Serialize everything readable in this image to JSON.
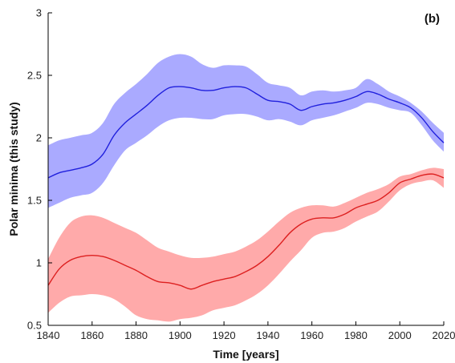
{
  "chart_data": {
    "type": "line",
    "panel_label": "(b)",
    "xlabel": "Time [years]",
    "ylabel": "Polar minima (this study)",
    "xlim": [
      1840,
      2020
    ],
    "ylim": [
      0.5,
      3
    ],
    "xticks": [
      1840,
      1860,
      1880,
      1900,
      1920,
      1940,
      1960,
      1980,
      2000,
      2020
    ],
    "yticks": [
      0.5,
      1,
      1.5,
      2,
      2.5,
      3
    ],
    "ytick_labels": [
      "0.5",
      "1",
      "1.5",
      "2",
      "2.5",
      "3"
    ],
    "grid": false,
    "series": [
      {
        "color": "#2020dd",
        "band_color": "#aaaaff",
        "x": [
          1840,
          1845,
          1850,
          1855,
          1860,
          1865,
          1870,
          1875,
          1880,
          1885,
          1890,
          1895,
          1900,
          1905,
          1910,
          1915,
          1920,
          1925,
          1930,
          1935,
          1940,
          1945,
          1950,
          1955,
          1960,
          1965,
          1970,
          1975,
          1980,
          1985,
          1990,
          1995,
          2000,
          2005,
          2010,
          2015,
          2020
        ],
        "y": [
          1.68,
          1.72,
          1.74,
          1.76,
          1.79,
          1.87,
          2.02,
          2.12,
          2.19,
          2.26,
          2.34,
          2.4,
          2.41,
          2.4,
          2.38,
          2.38,
          2.4,
          2.41,
          2.4,
          2.35,
          2.3,
          2.29,
          2.27,
          2.22,
          2.25,
          2.27,
          2.28,
          2.3,
          2.33,
          2.37,
          2.35,
          2.31,
          2.28,
          2.24,
          2.16,
          2.05,
          1.96
        ],
        "lower": [
          1.44,
          1.48,
          1.52,
          1.54,
          1.56,
          1.64,
          1.78,
          1.9,
          1.96,
          2.02,
          2.09,
          2.14,
          2.16,
          2.16,
          2.15,
          2.15,
          2.18,
          2.19,
          2.19,
          2.17,
          2.14,
          2.15,
          2.13,
          2.1,
          2.14,
          2.16,
          2.18,
          2.21,
          2.24,
          2.28,
          2.27,
          2.24,
          2.22,
          2.2,
          2.1,
          1.98,
          1.89
        ],
        "upper": [
          1.94,
          1.98,
          2.0,
          2.02,
          2.04,
          2.12,
          2.27,
          2.36,
          2.43,
          2.51,
          2.6,
          2.65,
          2.67,
          2.65,
          2.59,
          2.56,
          2.58,
          2.58,
          2.57,
          2.51,
          2.44,
          2.42,
          2.4,
          2.34,
          2.37,
          2.38,
          2.37,
          2.38,
          2.4,
          2.47,
          2.43,
          2.37,
          2.33,
          2.28,
          2.21,
          2.12,
          2.04
        ]
      },
      {
        "color": "#dd2020",
        "band_color": "#ffaaaa",
        "x": [
          1840,
          1845,
          1850,
          1855,
          1860,
          1865,
          1870,
          1875,
          1880,
          1885,
          1890,
          1895,
          1900,
          1905,
          1910,
          1915,
          1920,
          1925,
          1930,
          1935,
          1940,
          1945,
          1950,
          1955,
          1960,
          1965,
          1970,
          1975,
          1980,
          1985,
          1990,
          1995,
          2000,
          2005,
          2010,
          2015,
          2020
        ],
        "y": [
          0.82,
          0.95,
          1.02,
          1.05,
          1.06,
          1.05,
          1.02,
          0.98,
          0.94,
          0.89,
          0.85,
          0.84,
          0.82,
          0.79,
          0.82,
          0.85,
          0.87,
          0.89,
          0.93,
          0.98,
          1.05,
          1.14,
          1.24,
          1.31,
          1.35,
          1.36,
          1.36,
          1.39,
          1.44,
          1.47,
          1.5,
          1.56,
          1.64,
          1.67,
          1.7,
          1.71,
          1.68
        ],
        "lower": [
          0.6,
          0.68,
          0.73,
          0.74,
          0.75,
          0.74,
          0.71,
          0.65,
          0.58,
          0.55,
          0.54,
          0.53,
          0.55,
          0.56,
          0.58,
          0.62,
          0.64,
          0.66,
          0.7,
          0.75,
          0.82,
          0.91,
          1.01,
          1.1,
          1.2,
          1.24,
          1.25,
          1.28,
          1.33,
          1.37,
          1.41,
          1.49,
          1.58,
          1.63,
          1.65,
          1.66,
          1.6
        ],
        "upper": [
          1.03,
          1.2,
          1.32,
          1.37,
          1.38,
          1.36,
          1.32,
          1.28,
          1.24,
          1.18,
          1.12,
          1.09,
          1.06,
          1.04,
          1.04,
          1.05,
          1.07,
          1.09,
          1.13,
          1.18,
          1.25,
          1.33,
          1.4,
          1.44,
          1.46,
          1.46,
          1.45,
          1.48,
          1.52,
          1.56,
          1.59,
          1.63,
          1.69,
          1.71,
          1.74,
          1.76,
          1.75
        ]
      }
    ]
  }
}
